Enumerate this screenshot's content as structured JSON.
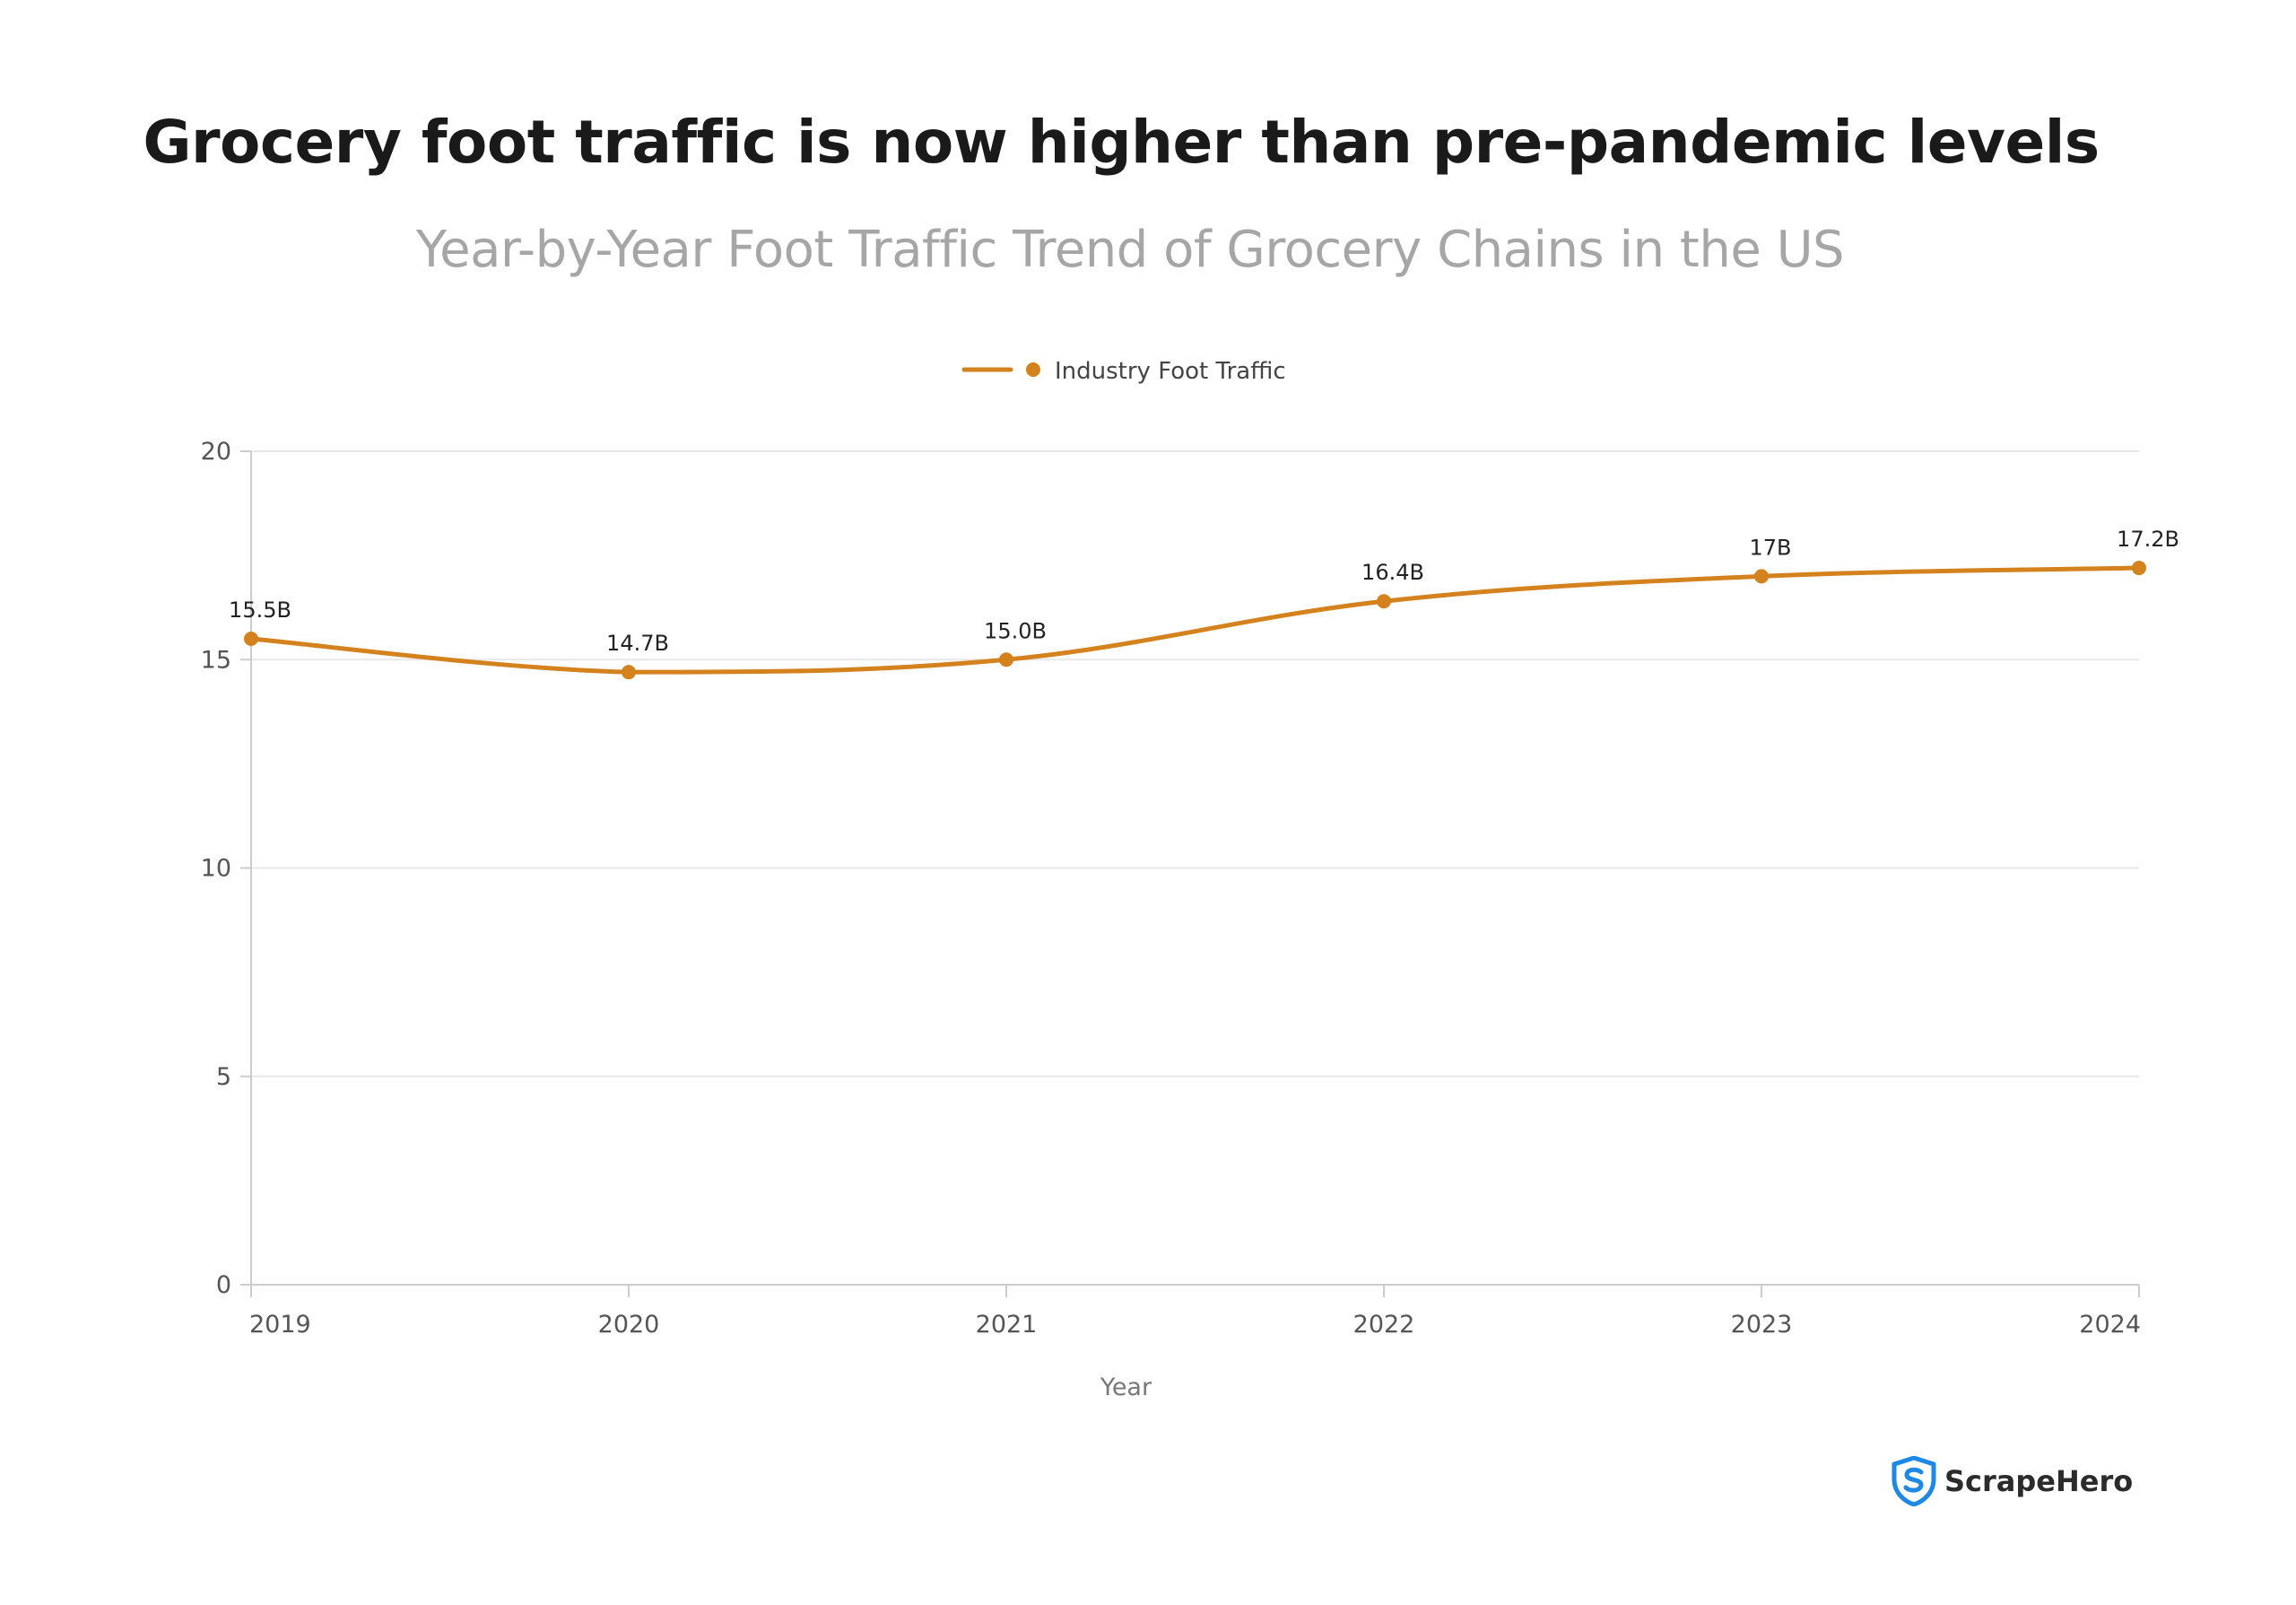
{
  "chart_data": {
    "type": "line",
    "title": "Grocery foot traffic is now higher than pre-pandemic levels",
    "subtitle": "Year-by-Year Foot Traffic Trend of Grocery Chains in the US",
    "xlabel": "Year",
    "ylabel": "",
    "categories": [
      "2019",
      "2020",
      "2021",
      "2022",
      "2023",
      "2024"
    ],
    "series": [
      {
        "name": "Industry Foot Traffic",
        "values": [
          15.5,
          14.7,
          15.0,
          16.4,
          17.0,
          17.2
        ],
        "labels": [
          "15.5B",
          "14.7B",
          "15.0B",
          "16.4B",
          "17B",
          "17.2B"
        ],
        "color": "#D4821E"
      }
    ],
    "ylim": [
      0,
      20
    ],
    "yticks": [
      "0",
      "5",
      "10",
      "15",
      "20"
    ],
    "grid": true,
    "legend_position": "top-center",
    "smooth": true
  },
  "brand": {
    "name": "ScrapeHero",
    "logo_icon": "shield-s-icon",
    "logo_color": "#1E88E5"
  }
}
